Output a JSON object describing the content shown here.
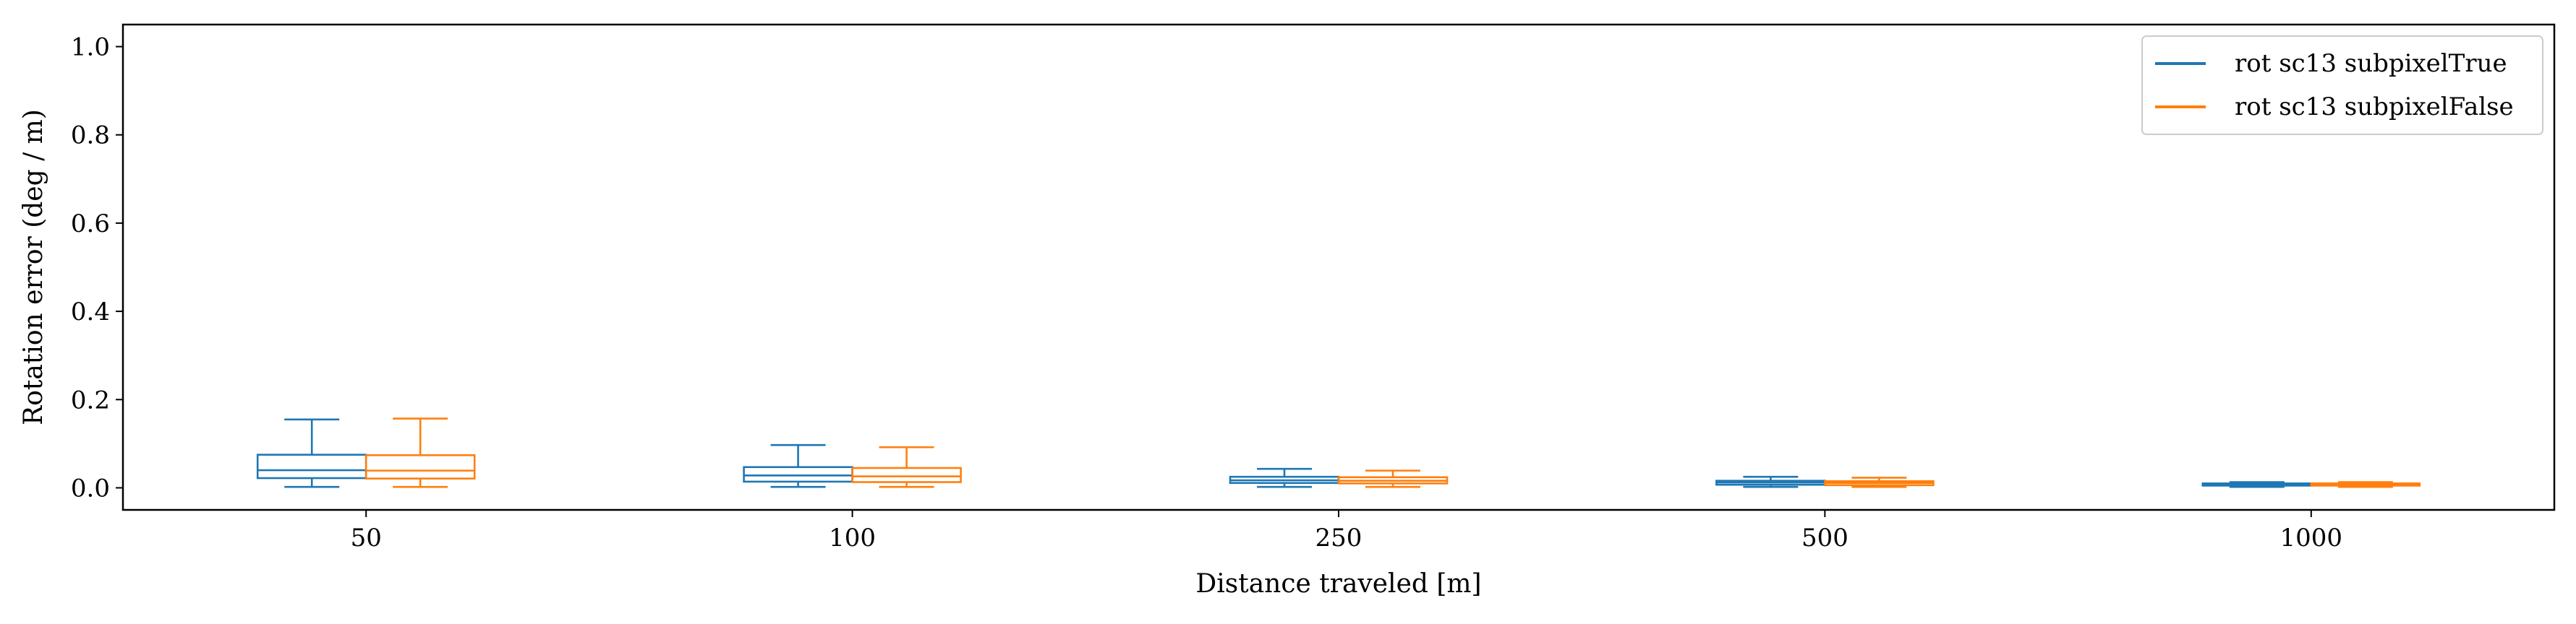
{
  "chart_data": {
    "type": "box",
    "title": "",
    "xlabel": "Distance traveled [m]",
    "ylabel": "Rotation error (deg / m)",
    "categories": [
      "50",
      "100",
      "250",
      "500",
      "1000"
    ],
    "ylim": [
      -0.05,
      1.05
    ],
    "yticks": [
      0.0,
      0.2,
      0.4,
      0.6,
      0.8,
      1.0
    ],
    "ytick_labels": [
      "0.0",
      "0.2",
      "0.4",
      "0.6",
      "0.8",
      "1.0"
    ],
    "grid": false,
    "legend_position": "top-right",
    "series": [
      {
        "name": "rot sc13 subpixelTrue",
        "color": "#1f77b4",
        "boxes": [
          {
            "whislo": 0.002,
            "q1": 0.022,
            "med": 0.04,
            "q3": 0.075,
            "whishi": 0.155
          },
          {
            "whislo": 0.002,
            "q1": 0.014,
            "med": 0.028,
            "q3": 0.047,
            "whishi": 0.097
          },
          {
            "whislo": 0.002,
            "q1": 0.011,
            "med": 0.017,
            "q3": 0.025,
            "whishi": 0.043
          },
          {
            "whislo": 0.002,
            "q1": 0.007,
            "med": 0.012,
            "q3": 0.016,
            "whishi": 0.025
          },
          {
            "whislo": 0.002,
            "q1": 0.005,
            "med": 0.008,
            "q3": 0.01,
            "whishi": 0.013
          }
        ]
      },
      {
        "name": "rot sc13 subpixelFalse",
        "color": "#ff7f0e",
        "boxes": [
          {
            "whislo": 0.002,
            "q1": 0.021,
            "med": 0.039,
            "q3": 0.074,
            "whishi": 0.157
          },
          {
            "whislo": 0.002,
            "q1": 0.013,
            "med": 0.026,
            "q3": 0.045,
            "whishi": 0.092
          },
          {
            "whislo": 0.002,
            "q1": 0.01,
            "med": 0.016,
            "q3": 0.024,
            "whishi": 0.039
          },
          {
            "whislo": 0.002,
            "q1": 0.006,
            "med": 0.011,
            "q3": 0.015,
            "whishi": 0.023
          },
          {
            "whislo": 0.002,
            "q1": 0.005,
            "med": 0.008,
            "q3": 0.01,
            "whishi": 0.013
          }
        ]
      }
    ]
  }
}
